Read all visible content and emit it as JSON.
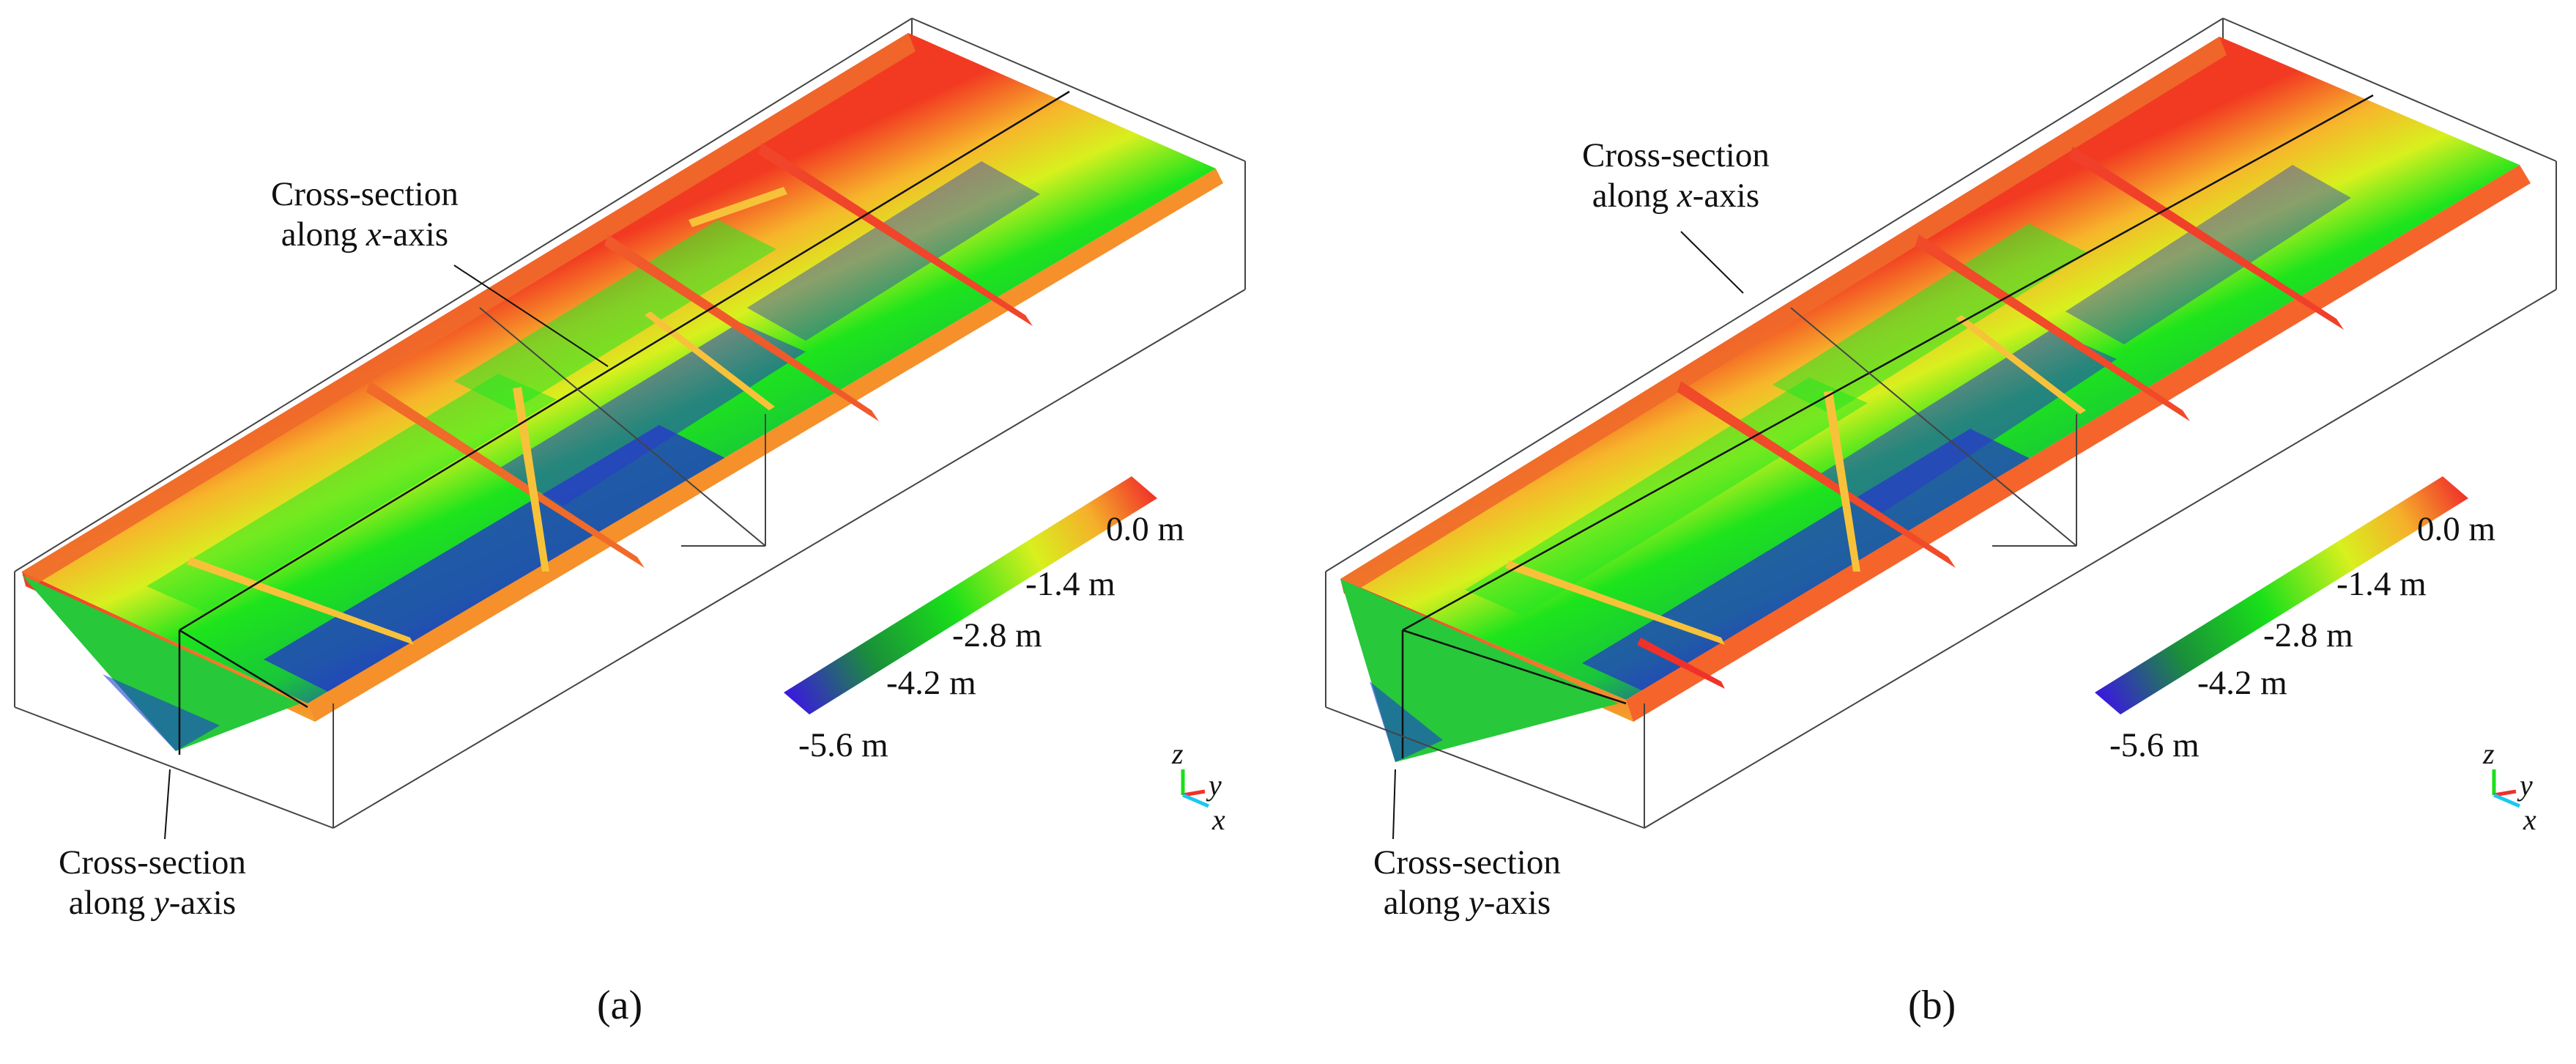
{
  "panels": [
    {
      "sub_label": "(a)",
      "cross_section_x": [
        "Cross-section",
        "along ",
        "x",
        "-axis"
      ],
      "cross_section_y": [
        "Cross-section",
        "along ",
        "y",
        "-axis"
      ],
      "colorbar": [
        "0.0 m",
        "-1.4 m",
        "-2.8 m",
        "-4.2 m",
        "-5.6 m"
      ],
      "axis_labels": [
        "z",
        "y",
        "x"
      ]
    },
    {
      "sub_label": "(b)",
      "cross_section_x": [
        "Cross-section",
        "along ",
        "x",
        "-axis"
      ],
      "cross_section_y": [
        "Cross-section",
        "along ",
        "y",
        "-axis"
      ],
      "colorbar": [
        "0.0 m",
        "-1.4 m",
        "-2.8 m",
        "-4.2 m",
        "-5.6 m"
      ],
      "axis_labels": [
        "z",
        "y",
        "x"
      ]
    }
  ],
  "colors": {
    "ramp": [
      "#3a18e0",
      "#1a8f3a",
      "#19e019",
      "#d8f01e",
      "#f5b02a",
      "#f0312a"
    ]
  }
}
